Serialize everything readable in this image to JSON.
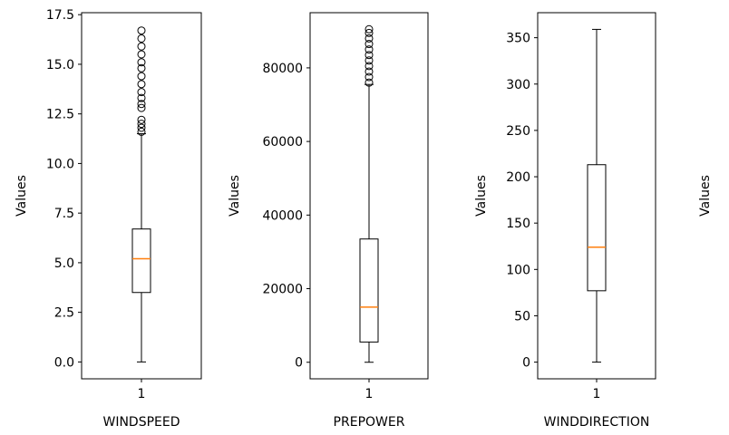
{
  "chart_data": [
    {
      "type": "box",
      "categories": [
        "1"
      ],
      "xlabel": "WINDSPEED",
      "ylabel": "Values",
      "ylim": [
        -0.85,
        17.6
      ],
      "yticks": [
        0.0,
        2.5,
        5.0,
        7.5,
        10.0,
        12.5,
        15.0,
        17.5
      ],
      "ytick_labels": [
        "0.0",
        "2.5",
        "5.0",
        "7.5",
        "10.0",
        "12.5",
        "15.0",
        "17.5"
      ],
      "median_color": "#ff7f0e",
      "box": {
        "min": 0.0,
        "q1": 3.5,
        "median": 5.2,
        "q3": 6.7,
        "max": 11.5
      },
      "outliers": [
        11.6,
        11.8,
        12.0,
        12.2,
        12.8,
        13.0,
        13.3,
        13.6,
        14.0,
        14.4,
        14.8,
        15.1,
        15.5,
        15.9,
        16.3,
        16.7
      ]
    },
    {
      "type": "box",
      "categories": [
        "1"
      ],
      "xlabel": "PREPOWER",
      "ylabel": "Values",
      "ylim": [
        -4500,
        95000
      ],
      "yticks": [
        0,
        20000,
        40000,
        60000,
        80000
      ],
      "ytick_labels": [
        "0",
        "20000",
        "40000",
        "60000",
        "80000"
      ],
      "median_color": "#ff7f0e",
      "box": {
        "min": 0,
        "q1": 5500,
        "median": 15000,
        "q3": 33500,
        "max": 75500
      },
      "outliers": [
        76000,
        77500,
        79000,
        80500,
        82000,
        83500,
        85000,
        86500,
        88000,
        89500,
        90500
      ]
    },
    {
      "type": "box",
      "categories": [
        "1"
      ],
      "xlabel": "WINDDIRECTION",
      "ylabel": "Values",
      "ylim": [
        -18,
        377
      ],
      "yticks": [
        0,
        50,
        100,
        150,
        200,
        250,
        300,
        350
      ],
      "ytick_labels": [
        "0",
        "50",
        "100",
        "150",
        "200",
        "250",
        "300",
        "350"
      ],
      "median_color": "#ff7f0e",
      "box": {
        "min": 0,
        "q1": 77,
        "median": 124,
        "q3": 213,
        "max": 359
      },
      "outliers": []
    },
    {
      "type": "box",
      "categories": [],
      "xlabel": "",
      "ylabel": "Values"
    }
  ]
}
